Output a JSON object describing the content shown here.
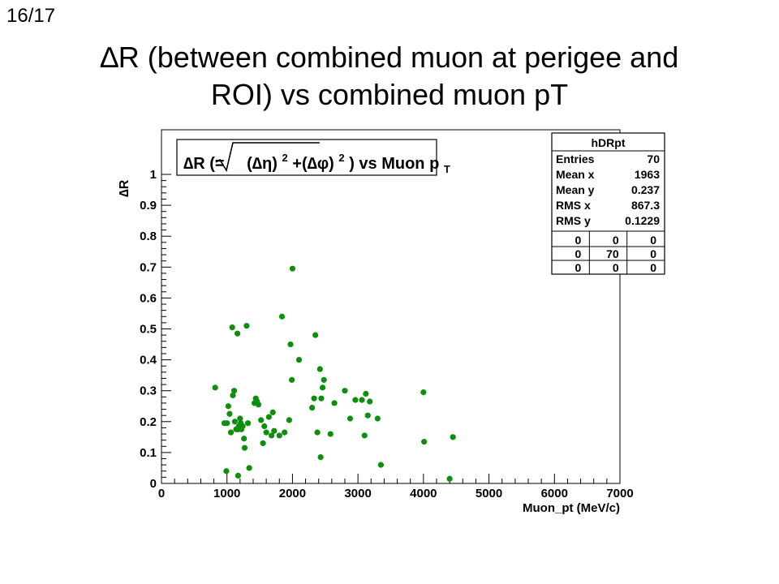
{
  "slide": {
    "page_number": "16/17",
    "title_line1": "∆R (between combined muon at perigee and",
    "title_line2": "ROI) vs combined muon pT"
  },
  "chart_data": {
    "type": "scatter",
    "title": "∆R (=√(∆η)²+(∆φ)²) vs Muon p_T",
    "title_parts": {
      "a": "∆R (=",
      "b": "(∆η)",
      "c": "2",
      "d": "+(∆φ)",
      "e": "2",
      "f": ") vs Muon p",
      "g": "T"
    },
    "xlabel": "Muon_pt (MeV/c)",
    "ylabel": "∆R",
    "xlim": [
      0,
      7000
    ],
    "ylim": [
      0,
      1
    ],
    "x_ticks": [
      0,
      1000,
      2000,
      3000,
      4000,
      5000,
      6000,
      7000
    ],
    "y_ticks": [
      0,
      0.1,
      0.2,
      0.3,
      0.4,
      0.5,
      0.6,
      0.7,
      0.8,
      0.9,
      1
    ],
    "x_tick_labels": [
      "0",
      "1000",
      "2000",
      "3000",
      "4000",
      "5000",
      "6000",
      "7000"
    ],
    "y_tick_labels": [
      "0",
      "0.1",
      "0.2",
      "0.3",
      "0.4",
      "0.5",
      "0.6",
      "0.7",
      "0.8",
      "0.9",
      "1"
    ],
    "grid": false,
    "marker_color": "#0c8f0c",
    "series": [
      {
        "x": [
          820,
          960,
          990,
          1020,
          1040,
          1060,
          1080,
          1090,
          1110,
          1120,
          1140,
          1160,
          1170,
          1180,
          1200,
          1210,
          1220,
          1240,
          1260,
          1270,
          1300,
          1320,
          1340,
          1420,
          1440,
          1460,
          1480,
          1520,
          1550,
          1570,
          1600,
          1640,
          1680,
          1700,
          1720,
          1800,
          1840,
          1880,
          1950,
          1970,
          1990,
          2000,
          2100,
          2300,
          2330,
          2350,
          2380,
          2420,
          2430,
          2440,
          2460,
          2480,
          2580,
          2640,
          2800,
          2880,
          2960,
          3060,
          3100,
          3120,
          3150,
          3180,
          3300,
          3350,
          4000,
          4010,
          4400,
          4450,
          1000,
          1170
        ],
        "y": [
          0.31,
          0.195,
          0.04,
          0.25,
          0.225,
          0.165,
          0.505,
          0.285,
          0.3,
          0.2,
          0.175,
          0.485,
          0.025,
          0.185,
          0.21,
          0.195,
          0.175,
          0.185,
          0.145,
          0.115,
          0.51,
          0.195,
          0.05,
          0.26,
          0.275,
          0.265,
          0.255,
          0.205,
          0.13,
          0.185,
          0.165,
          0.215,
          0.155,
          0.23,
          0.17,
          0.155,
          0.54,
          0.165,
          0.205,
          0.45,
          0.335,
          0.695,
          0.4,
          0.245,
          0.275,
          0.48,
          0.165,
          0.37,
          0.085,
          0.275,
          0.31,
          0.335,
          0.16,
          0.26,
          0.3,
          0.21,
          0.27,
          0.27,
          0.155,
          0.29,
          0.22,
          0.265,
          0.21,
          0.06,
          0.295,
          0.135,
          0.015,
          0.15,
          0.195,
          0.175
        ]
      }
    ],
    "stats": {
      "name": "hDRpt",
      "rows": [
        {
          "label": "Entries",
          "value": "70"
        },
        {
          "label": "Mean x",
          "value": "1963"
        },
        {
          "label": "Mean y",
          "value": "0.237"
        },
        {
          "label": "RMS x",
          "value": "867.3"
        },
        {
          "label": "RMS y",
          "value": "0.1229"
        }
      ],
      "grid": [
        [
          "0",
          "0",
          "0"
        ],
        [
          "0",
          "70",
          "0"
        ],
        [
          "0",
          "0",
          "0"
        ]
      ]
    }
  }
}
